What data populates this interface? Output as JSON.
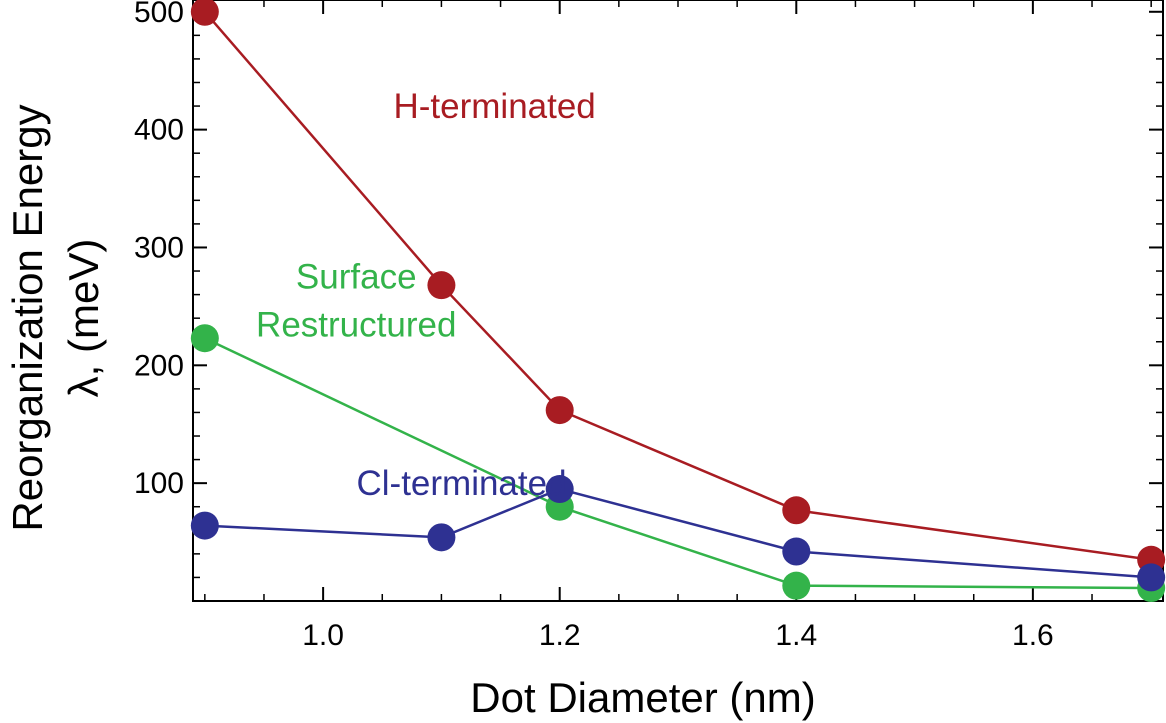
{
  "chart_data": {
    "type": "line",
    "title": "",
    "xlabel": "Dot Diameter (nm)",
    "ylabel": "Reorganization Energy",
    "ylabel_line2": "λ, (meV)",
    "xlim": [
      0.89,
      1.71
    ],
    "ylim": [
      0,
      510
    ],
    "xticks": [
      1.0,
      1.2,
      1.4,
      1.6
    ],
    "xtick_labels": [
      "1.0",
      "1.2",
      "1.4",
      "1.6"
    ],
    "yticks": [
      100,
      200,
      300,
      400,
      500
    ],
    "ytick_labels": [
      "100",
      "200",
      "300",
      "400",
      "500"
    ],
    "grid": false,
    "x": [
      0.9,
      1.1,
      1.2,
      1.4,
      1.7
    ],
    "series": [
      {
        "name": "H-terminated",
        "label_lines": [
          "H-terminated"
        ],
        "color": "#a81c22",
        "values": [
          500,
          268,
          162,
          77,
          35
        ]
      },
      {
        "name": "Surface Restructured",
        "label_lines": [
          "Surface",
          "Restructured"
        ],
        "color": "#33b34a",
        "values": [
          223,
          null,
          80,
          13,
          11
        ]
      },
      {
        "name": "Cl-terminated",
        "label_lines": [
          "Cl-terminated"
        ],
        "color": "#2e3192",
        "values": [
          64,
          54,
          95,
          42,
          20
        ]
      }
    ]
  }
}
